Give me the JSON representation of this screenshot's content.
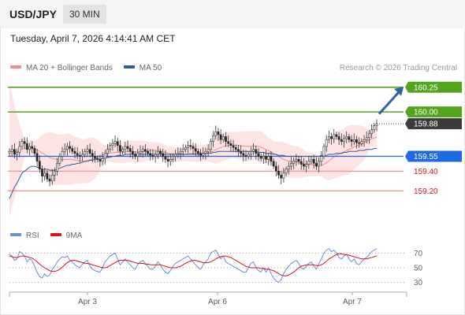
{
  "header": {
    "pair": "USD/JPY",
    "interval": "30 MIN"
  },
  "datetime": "Tuesday, April 7, 2026 4:14:41 AM CET",
  "legend": {
    "items": [
      {
        "label": "MA 20 + Bollinger Bands",
        "color": "#f28b8b"
      },
      {
        "label": "MA 50",
        "color": "#2e5c9a"
      }
    ]
  },
  "copyright": "Research © 2026 Trading Central",
  "rsi_legend": {
    "items": [
      {
        "label": "RSI",
        "color": "#6b8fd6"
      },
      {
        "label": "9MA",
        "color": "#d9131a"
      }
    ]
  },
  "colors": {
    "resistance": "#53a51d",
    "support": "#f28b8b",
    "support_text": "#d9131a",
    "price_tag": "#3b3b3b",
    "pivot": "#1e6ae0",
    "arrow": "#2e62a8",
    "bb_fill": "#fde3e3",
    "ma50": "#2e5c9a",
    "rsi": "#6b8fd6",
    "rsi_ma": "#d9131a"
  },
  "chart_data": {
    "type": "candlestick",
    "instrument": "USD/JPY",
    "interval": "30 MIN",
    "price_range": [
      158.9,
      160.4
    ],
    "levels": {
      "resistance": [
        160.25,
        160.0
      ],
      "last": 159.88,
      "pivot": 159.55,
      "support": [
        159.4,
        159.2
      ]
    },
    "level_labels": {
      "r2": "160.25",
      "r1": "160.00",
      "last": "159.88",
      "pivot": "159.55",
      "s1": "159.40",
      "s2": "159.20"
    },
    "close": [
      159.6,
      159.62,
      159.57,
      159.59,
      159.65,
      159.7,
      159.68,
      159.62,
      159.65,
      159.63,
      159.58,
      159.5,
      159.42,
      159.35,
      159.38,
      159.32,
      159.3,
      159.36,
      159.4,
      159.48,
      159.55,
      159.6,
      159.62,
      159.65,
      159.63,
      159.6,
      159.58,
      159.56,
      159.55,
      159.57,
      159.6,
      159.62,
      159.58,
      159.55,
      159.53,
      159.52,
      159.5,
      159.53,
      159.58,
      159.62,
      159.66,
      159.68,
      159.7,
      159.66,
      159.6,
      159.62,
      159.65,
      159.63,
      159.6,
      159.57,
      159.55,
      159.58,
      159.6,
      159.62,
      159.6,
      159.58,
      159.56,
      159.55,
      159.57,
      159.6,
      159.58,
      159.55,
      159.52,
      159.5,
      159.52,
      159.55,
      159.57,
      159.58,
      159.6,
      159.62,
      159.64,
      159.66,
      159.65,
      159.63,
      159.6,
      159.58,
      159.56,
      159.58,
      159.6,
      159.62,
      159.7,
      159.76,
      159.8,
      159.77,
      159.72,
      159.75,
      159.7,
      159.68,
      159.66,
      159.64,
      159.62,
      159.6,
      159.58,
      159.56,
      159.55,
      159.57,
      159.6,
      159.62,
      159.58,
      159.55,
      159.53,
      159.55,
      159.52,
      159.55,
      159.5,
      159.45,
      159.4,
      159.36,
      159.33,
      159.38,
      159.42,
      159.45,
      159.48,
      159.5,
      159.52,
      159.5,
      159.47,
      159.45,
      159.47,
      159.5,
      159.52,
      159.48,
      159.45,
      159.5,
      159.55,
      159.65,
      159.72,
      159.75,
      159.73,
      159.77,
      159.75,
      159.72,
      159.7,
      159.73,
      159.75,
      159.72,
      159.7,
      159.72,
      159.69,
      159.68,
      159.7,
      159.72,
      159.74,
      159.78,
      159.82,
      159.86,
      159.88
    ],
    "ma50": [
      159.12,
      159.18,
      159.24,
      159.28,
      159.33,
      159.38,
      159.4,
      159.42,
      159.44,
      159.45,
      159.45,
      159.44,
      159.43,
      159.42,
      159.42,
      159.42,
      159.41,
      159.41,
      159.41,
      159.42,
      159.43,
      159.44,
      159.45,
      159.46,
      159.46,
      159.47,
      159.47,
      159.48,
      159.48,
      159.49,
      159.5,
      159.5,
      159.51,
      159.51,
      159.52,
      159.52,
      159.52,
      159.53,
      159.53,
      159.54,
      159.54,
      159.55,
      159.55,
      159.56,
      159.56,
      159.56,
      159.57,
      159.57,
      159.57,
      159.57,
      159.57,
      159.57,
      159.57,
      159.57,
      159.57,
      159.57,
      159.57,
      159.57,
      159.57,
      159.57,
      159.57,
      159.57,
      159.57,
      159.57,
      159.57,
      159.57,
      159.57,
      159.57,
      159.57,
      159.57,
      159.57,
      159.57,
      159.57,
      159.57,
      159.57,
      159.57,
      159.57,
      159.57,
      159.58,
      159.58,
      159.58,
      159.59,
      159.59,
      159.6,
      159.6,
      159.6,
      159.6,
      159.6,
      159.6,
      159.6,
      159.6,
      159.6,
      159.6,
      159.6,
      159.6,
      159.6,
      159.6,
      159.6,
      159.6,
      159.59,
      159.59,
      159.59,
      159.58,
      159.58,
      159.58,
      159.57,
      159.57,
      159.56,
      159.56,
      159.56,
      159.55,
      159.55,
      159.55,
      159.55,
      159.55,
      159.55,
      159.55,
      159.55,
      159.55,
      159.55,
      159.55,
      159.55,
      159.55,
      159.55,
      159.56,
      159.56,
      159.56,
      159.57,
      159.57,
      159.57,
      159.58,
      159.58,
      159.58,
      159.59,
      159.59,
      159.6,
      159.6,
      159.6,
      159.6,
      159.61,
      159.61,
      159.61,
      159.62,
      159.62,
      159.62,
      159.63,
      159.63
    ],
    "ma50_start_index": 0,
    "rsi": {
      "levels": [
        70,
        50,
        30
      ],
      "level_labels": [
        "70",
        "50",
        "30"
      ],
      "values": [
        68,
        66,
        60,
        62,
        72,
        70,
        66,
        58,
        62,
        60,
        52,
        44,
        38,
        36,
        42,
        38,
        40,
        48,
        52,
        58,
        62,
        65,
        64,
        66,
        60,
        58,
        54,
        52,
        50,
        55,
        58,
        60,
        52,
        48,
        46,
        45,
        44,
        50,
        58,
        62,
        66,
        68,
        70,
        62,
        54,
        58,
        62,
        58,
        54,
        50,
        48,
        54,
        58,
        60,
        56,
        52,
        48,
        48,
        52,
        58,
        54,
        48,
        44,
        42,
        46,
        52,
        56,
        58,
        60,
        62,
        64,
        66,
        62,
        58,
        54,
        50,
        48,
        54,
        58,
        62,
        70,
        72,
        74,
        68,
        62,
        66,
        58,
        56,
        54,
        52,
        50,
        48,
        46,
        44,
        44,
        50,
        56,
        58,
        50,
        46,
        44,
        50,
        44,
        50,
        42,
        36,
        32,
        30,
        34,
        42,
        48,
        52,
        56,
        58,
        60,
        56,
        50,
        48,
        52,
        56,
        58,
        52,
        48,
        56,
        62,
        70,
        74,
        76,
        72,
        74,
        70,
        64,
        62,
        66,
        68,
        62,
        58,
        62,
        56,
        54,
        58,
        62,
        64,
        68,
        72,
        74,
        76
      ],
      "ma": [
        66,
        65,
        64,
        64,
        65,
        66,
        66,
        65,
        64,
        63,
        61,
        58,
        55,
        52,
        50,
        48,
        46,
        45,
        45,
        46,
        48,
        51,
        54,
        57,
        59,
        60,
        60,
        59,
        58,
        57,
        56,
        56,
        55,
        54,
        53,
        52,
        51,
        50,
        50,
        51,
        53,
        55,
        57,
        59,
        60,
        60,
        60,
        60,
        59,
        58,
        57,
        56,
        56,
        56,
        55,
        55,
        54,
        54,
        54,
        54,
        54,
        53,
        52,
        51,
        50,
        50,
        50,
        51,
        52,
        54,
        56,
        58,
        59,
        60,
        60,
        59,
        58,
        57,
        57,
        57,
        58,
        60,
        62,
        64,
        65,
        66,
        66,
        65,
        64,
        62,
        60,
        58,
        56,
        54,
        52,
        51,
        50,
        50,
        50,
        50,
        49,
        49,
        48,
        48,
        47,
        46,
        44,
        42,
        40,
        39,
        39,
        40,
        42,
        44,
        47,
        50,
        52,
        53,
        54,
        54,
        54,
        54,
        53,
        53,
        54,
        56,
        59,
        62,
        64,
        66,
        68,
        69,
        69,
        68,
        68,
        67,
        66,
        65,
        64,
        63,
        62,
        62,
        62,
        63,
        64,
        65,
        66
      ]
    },
    "x_tick_labels": [
      "Apr 3",
      "Apr 6",
      "Apr 7"
    ]
  }
}
